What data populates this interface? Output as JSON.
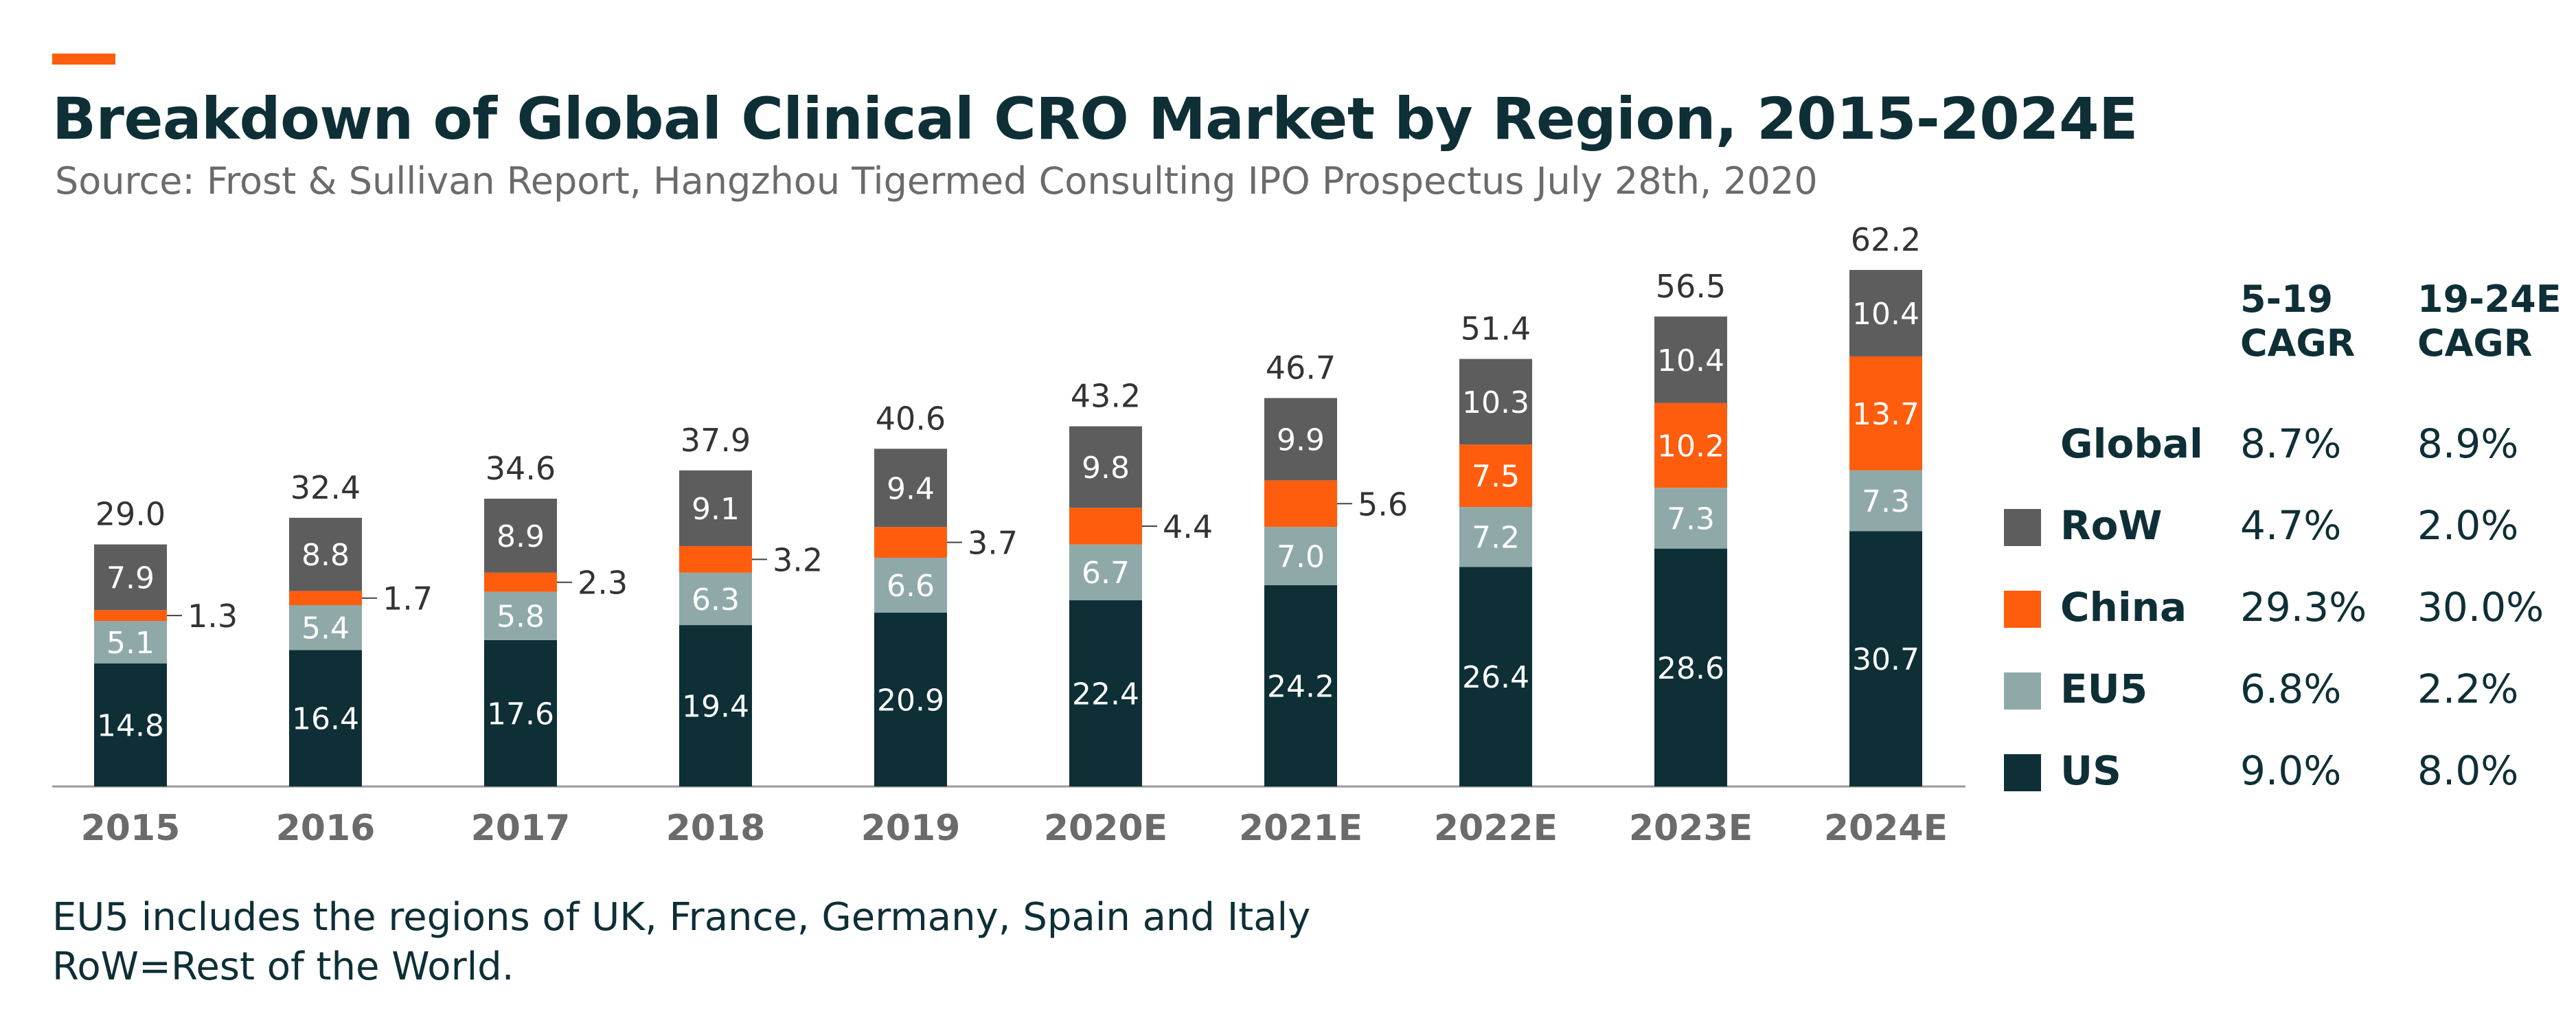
{
  "header": {
    "title": "Breakdown of Global Clinical CRO Market by Region, 2015-2024E",
    "subtitle": "Source: Frost & Sullivan Report, Hangzhou Tigermed Consulting IPO Prospectus July 28th, 2020"
  },
  "colors": {
    "us": "#0e2f36",
    "eu5": "#8fa9a9",
    "china": "#fe5d0e",
    "row": "#5d5d5d",
    "accent": "#fe5d0e",
    "axis": "#9a9a9a",
    "year_label": "#6b6b6b"
  },
  "chart_data": {
    "type": "bar",
    "stacked": true,
    "categories": [
      "2015",
      "2016",
      "2017",
      "2018",
      "2019",
      "2020E",
      "2021E",
      "2022E",
      "2023E",
      "2024E"
    ],
    "series": [
      {
        "name": "US",
        "values": [
          14.8,
          16.4,
          17.6,
          19.4,
          20.9,
          22.4,
          24.2,
          26.4,
          28.6,
          30.7
        ]
      },
      {
        "name": "EU5",
        "values": [
          5.1,
          5.4,
          5.8,
          6.3,
          6.6,
          6.7,
          7.0,
          7.2,
          7.3,
          7.3
        ]
      },
      {
        "name": "China",
        "values": [
          1.3,
          1.7,
          2.3,
          3.2,
          3.7,
          4.4,
          5.6,
          7.5,
          10.2,
          13.7
        ]
      },
      {
        "name": "RoW",
        "values": [
          7.9,
          8.8,
          8.9,
          9.1,
          9.4,
          9.8,
          9.9,
          10.3,
          10.4,
          10.4
        ]
      }
    ],
    "totals": [
      "29.0",
      "32.4",
      "34.6",
      "37.9",
      "40.6",
      "43.2",
      "46.7",
      "51.4",
      "56.5",
      "62.2"
    ],
    "labels": {
      "US": [
        "14.8",
        "16.4",
        "17.6",
        "19.4",
        "20.9",
        "22.4",
        "24.2",
        "26.4",
        "28.6",
        "30.7"
      ],
      "EU5": [
        "5.1",
        "5.4",
        "5.8",
        "6.3",
        "6.6",
        "6.7",
        "7.0",
        "7.2",
        "7.3",
        "7.3"
      ],
      "China": [
        "1.3",
        "1.7",
        "2.3",
        "3.2",
        "3.7",
        "4.4",
        "5.6",
        "7.5",
        "10.2",
        "13.7"
      ],
      "RoW": [
        "7.9",
        "8.8",
        "8.9",
        "9.1",
        "9.4",
        "9.8",
        "9.9",
        "10.3",
        "10.4",
        "10.4"
      ]
    },
    "china_label_outside": [
      true,
      true,
      true,
      true,
      true,
      true,
      true,
      false,
      false,
      false
    ],
    "ylim": [
      0,
      62.2
    ],
    "grid": false,
    "legend": "right"
  },
  "cagr_table": {
    "col1_header": [
      "5-19",
      "CAGR"
    ],
    "col2_header": [
      "19-24E",
      "CAGR"
    ],
    "rows": [
      {
        "region": "Global",
        "cagr_15_19": "8.7%",
        "cagr_19_24e": "8.9%",
        "swatch": ""
      },
      {
        "region": "RoW",
        "cagr_15_19": "4.7%",
        "cagr_19_24e": "2.0%",
        "swatch": "#5d5d5d"
      },
      {
        "region": "China",
        "cagr_15_19": "29.3%",
        "cagr_19_24e": "30.0%",
        "swatch": "#fe5d0e"
      },
      {
        "region": "EU5",
        "cagr_15_19": "6.8%",
        "cagr_19_24e": "2.2%",
        "swatch": "#8fa9a9"
      },
      {
        "region": "US",
        "cagr_15_19": "9.0%",
        "cagr_19_24e": "8.0%",
        "swatch": "#0e2f36"
      }
    ]
  },
  "notes": [
    "EU5 includes the regions of UK, France, Germany, Spain and Italy",
    "RoW=Rest of the World."
  ]
}
